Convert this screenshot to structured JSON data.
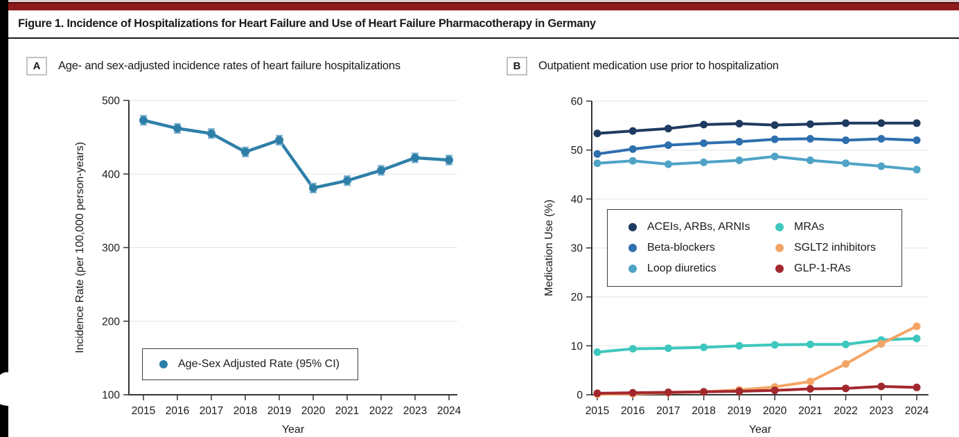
{
  "figure": {
    "title": "Figure 1. Incidence of Hospitalizations for Heart Failure and Use of Heart Failure Pharmacotherapy in Germany"
  },
  "panels": {
    "a": {
      "label": "A",
      "title": "Age- and sex-adjusted incidence rates of heart failure hospitalizations"
    },
    "b": {
      "label": "B",
      "title": "Outpatient medication use prior to hospitalization"
    }
  },
  "colors": {
    "top_bar": "#8E1B1B",
    "axis": "#333333",
    "grid": "#E7E7E7",
    "text": "#1A1A1A"
  },
  "chart_data": [
    {
      "type": "line",
      "title": "Age- and sex-adjusted incidence rates of heart failure hospitalizations",
      "xlabel": "Year",
      "ylabel": "Incidence Rate (per 100,000 person-years)",
      "x": [
        2015,
        2016,
        2017,
        2018,
        2019,
        2020,
        2021,
        2022,
        2023,
        2024
      ],
      "ylim": [
        100,
        500
      ],
      "yticks": [
        100,
        200,
        300,
        400,
        500
      ],
      "grid": true,
      "legend_position": "inside lower-left",
      "series": [
        {
          "name": "Age-Sex Adjusted Rate (95% CI)",
          "color": "#2E7FA8",
          "ci_color": "#7AB2CD",
          "ci": 6,
          "values": [
            473,
            462,
            455,
            430,
            446,
            381,
            391,
            405,
            422,
            419
          ]
        }
      ]
    },
    {
      "type": "line",
      "title": "Outpatient medication use prior to hospitalization",
      "xlabel": "Year",
      "ylabel": "Medication Use (%)",
      "x": [
        2015,
        2016,
        2017,
        2018,
        2019,
        2020,
        2021,
        2022,
        2023,
        2024
      ],
      "ylim": [
        0,
        60
      ],
      "yticks": [
        0,
        10,
        20,
        30,
        40,
        50,
        60
      ],
      "grid": true,
      "legend_position": "inside middle-left",
      "series": [
        {
          "name": "ACEIs, ARBs, ARNIs",
          "color": "#1F3A60",
          "values": [
            53.4,
            53.9,
            54.4,
            55.2,
            55.4,
            55.1,
            55.3,
            55.5,
            55.5,
            55.5
          ]
        },
        {
          "name": "Beta-blockers",
          "color": "#2E6FAE",
          "values": [
            49.2,
            50.2,
            51.0,
            51.4,
            51.7,
            52.2,
            52.3,
            52.0,
            52.3,
            52.0
          ]
        },
        {
          "name": "Loop diuretics",
          "color": "#4FA3C6",
          "values": [
            47.3,
            47.8,
            47.1,
            47.5,
            47.9,
            48.7,
            47.9,
            47.3,
            46.7,
            46.0
          ]
        },
        {
          "name": "MRAs",
          "color": "#3EC7BE",
          "values": [
            8.7,
            9.4,
            9.5,
            9.7,
            10.0,
            10.2,
            10.3,
            10.3,
            11.2,
            11.5
          ]
        },
        {
          "name": "SGLT2 inhibitors",
          "color": "#F4A566",
          "values": [
            0.1,
            0.2,
            0.4,
            0.6,
            1.0,
            1.6,
            2.7,
            6.3,
            10.4,
            14.0
          ]
        },
        {
          "name": "GLP-1-RAs",
          "color": "#A3282E",
          "values": [
            0.3,
            0.4,
            0.5,
            0.6,
            0.7,
            0.9,
            1.2,
            1.3,
            1.7,
            1.5
          ]
        }
      ]
    }
  ]
}
